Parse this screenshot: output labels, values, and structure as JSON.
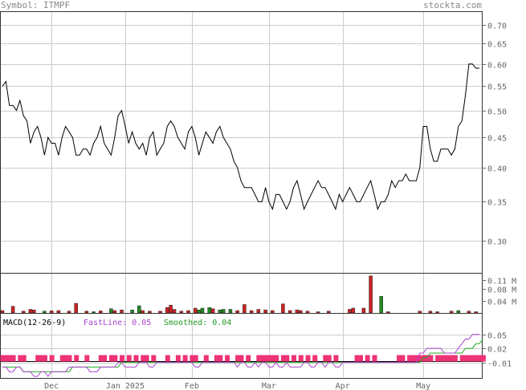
{
  "header": {
    "symbol_label": "Symbol: ITMPF",
    "brand": "stockta.com"
  },
  "colors": {
    "price_line": "#000000",
    "grid": "#cccccc",
    "volume_up": "#228822",
    "volume_down": "#cc2222",
    "fast_line": "#aa44cc",
    "smoothed_line": "#22aa22",
    "histogram": "#ee3377"
  },
  "chart_data": [
    {
      "type": "line",
      "panel": "price",
      "y_ticks": [
        "0.70",
        "0.65",
        "0.60",
        "0.55",
        "0.50",
        "0.45",
        "0.40",
        "0.35",
        "0.30"
      ],
      "y_tick_values": [
        0.7,
        0.65,
        0.6,
        0.55,
        0.5,
        0.45,
        0.4,
        0.35,
        0.3
      ],
      "ylim": [
        0.265,
        0.735
      ],
      "log_scale": true,
      "x_labels": [
        "Dec",
        "Jan 2025",
        "Feb",
        "Mar",
        "Apr",
        "May"
      ],
      "x_label_index": [
        14,
        35,
        54,
        76,
        97,
        120
      ],
      "values": [
        0.55,
        0.56,
        0.51,
        0.51,
        0.5,
        0.52,
        0.49,
        0.48,
        0.44,
        0.46,
        0.47,
        0.45,
        0.42,
        0.45,
        0.44,
        0.44,
        0.42,
        0.45,
        0.47,
        0.46,
        0.45,
        0.42,
        0.42,
        0.43,
        0.43,
        0.42,
        0.44,
        0.45,
        0.47,
        0.44,
        0.43,
        0.42,
        0.45,
        0.49,
        0.5,
        0.47,
        0.44,
        0.46,
        0.44,
        0.43,
        0.44,
        0.42,
        0.45,
        0.46,
        0.42,
        0.43,
        0.44,
        0.47,
        0.48,
        0.47,
        0.45,
        0.44,
        0.43,
        0.46,
        0.47,
        0.45,
        0.42,
        0.44,
        0.46,
        0.45,
        0.44,
        0.46,
        0.47,
        0.45,
        0.44,
        0.43,
        0.41,
        0.4,
        0.38,
        0.37,
        0.37,
        0.37,
        0.36,
        0.35,
        0.35,
        0.37,
        0.35,
        0.34,
        0.36,
        0.36,
        0.35,
        0.34,
        0.35,
        0.37,
        0.38,
        0.36,
        0.34,
        0.35,
        0.36,
        0.37,
        0.38,
        0.37,
        0.37,
        0.36,
        0.35,
        0.34,
        0.36,
        0.35,
        0.36,
        0.37,
        0.36,
        0.35,
        0.35,
        0.36,
        0.37,
        0.38,
        0.36,
        0.34,
        0.35,
        0.35,
        0.36,
        0.38,
        0.37,
        0.38,
        0.38,
        0.39,
        0.38,
        0.38,
        0.38,
        0.4,
        0.47,
        0.47,
        0.43,
        0.41,
        0.41,
        0.43,
        0.43,
        0.43,
        0.42,
        0.43,
        0.47,
        0.48,
        0.53,
        0.6,
        0.6,
        0.59,
        0.59
      ]
    },
    {
      "type": "bar",
      "panel": "volume",
      "y_ticks": [
        "0.11 M",
        "0.08 M",
        "0.04 M"
      ],
      "y_tick_values": [
        0.11,
        0.08,
        0.04
      ],
      "ylim": [
        0,
        0.125
      ],
      "bars": [
        {
          "i": 0,
          "v": 0.008,
          "c": "down"
        },
        {
          "i": 3,
          "v": 0.022,
          "c": "down"
        },
        {
          "i": 6,
          "v": 0.006,
          "c": "down"
        },
        {
          "i": 8,
          "v": 0.012,
          "c": "down"
        },
        {
          "i": 9,
          "v": 0.01,
          "c": "down"
        },
        {
          "i": 12,
          "v": 0.006,
          "c": "up"
        },
        {
          "i": 14,
          "v": 0.007,
          "c": "down"
        },
        {
          "i": 16,
          "v": 0.008,
          "c": "down"
        },
        {
          "i": 19,
          "v": 0.006,
          "c": "down"
        },
        {
          "i": 21,
          "v": 0.032,
          "c": "down"
        },
        {
          "i": 24,
          "v": 0.006,
          "c": "down"
        },
        {
          "i": 26,
          "v": 0.004,
          "c": "up"
        },
        {
          "i": 28,
          "v": 0.007,
          "c": "down"
        },
        {
          "i": 31,
          "v": 0.014,
          "c": "up"
        },
        {
          "i": 32,
          "v": 0.008,
          "c": "down"
        },
        {
          "i": 34,
          "v": 0.01,
          "c": "down"
        },
        {
          "i": 37,
          "v": 0.01,
          "c": "up"
        },
        {
          "i": 39,
          "v": 0.024,
          "c": "up"
        },
        {
          "i": 40,
          "v": 0.008,
          "c": "down"
        },
        {
          "i": 42,
          "v": 0.006,
          "c": "down"
        },
        {
          "i": 45,
          "v": 0.006,
          "c": "down"
        },
        {
          "i": 47,
          "v": 0.018,
          "c": "down"
        },
        {
          "i": 48,
          "v": 0.026,
          "c": "down"
        },
        {
          "i": 49,
          "v": 0.012,
          "c": "down"
        },
        {
          "i": 51,
          "v": 0.006,
          "c": "down"
        },
        {
          "i": 53,
          "v": 0.008,
          "c": "down"
        },
        {
          "i": 55,
          "v": 0.016,
          "c": "down"
        },
        {
          "i": 56,
          "v": 0.01,
          "c": "up"
        },
        {
          "i": 57,
          "v": 0.016,
          "c": "up"
        },
        {
          "i": 59,
          "v": 0.018,
          "c": "up"
        },
        {
          "i": 60,
          "v": 0.014,
          "c": "down"
        },
        {
          "i": 62,
          "v": 0.01,
          "c": "up"
        },
        {
          "i": 63,
          "v": 0.012,
          "c": "up"
        },
        {
          "i": 65,
          "v": 0.012,
          "c": "up"
        },
        {
          "i": 67,
          "v": 0.008,
          "c": "down"
        },
        {
          "i": 69,
          "v": 0.028,
          "c": "down"
        },
        {
          "i": 71,
          "v": 0.008,
          "c": "down"
        },
        {
          "i": 73,
          "v": 0.012,
          "c": "down"
        },
        {
          "i": 75,
          "v": 0.01,
          "c": "down"
        },
        {
          "i": 77,
          "v": 0.008,
          "c": "down"
        },
        {
          "i": 80,
          "v": 0.03,
          "c": "down"
        },
        {
          "i": 82,
          "v": 0.008,
          "c": "down"
        },
        {
          "i": 84,
          "v": 0.01,
          "c": "down"
        },
        {
          "i": 85,
          "v": 0.008,
          "c": "down"
        },
        {
          "i": 87,
          "v": 0.006,
          "c": "down"
        },
        {
          "i": 90,
          "v": 0.004,
          "c": "down"
        },
        {
          "i": 93,
          "v": 0.006,
          "c": "down"
        },
        {
          "i": 99,
          "v": 0.012,
          "c": "down"
        },
        {
          "i": 100,
          "v": 0.016,
          "c": "down"
        },
        {
          "i": 103,
          "v": 0.016,
          "c": "down"
        },
        {
          "i": 105,
          "v": 0.123,
          "c": "down"
        },
        {
          "i": 108,
          "v": 0.055,
          "c": "up"
        },
        {
          "i": 110,
          "v": 0.004,
          "c": "down"
        },
        {
          "i": 119,
          "v": 0.006,
          "c": "down"
        },
        {
          "i": 122,
          "v": 0.006,
          "c": "down"
        },
        {
          "i": 124,
          "v": 0.004,
          "c": "down"
        },
        {
          "i": 128,
          "v": 0.006,
          "c": "down"
        },
        {
          "i": 130,
          "v": 0.008,
          "c": "up"
        },
        {
          "i": 133,
          "v": 0.006,
          "c": "down"
        },
        {
          "i": 135,
          "v": 0.004,
          "c": "down"
        }
      ]
    },
    {
      "type": "line",
      "panel": "macd",
      "y_ticks": [
        "0.05",
        "0.02",
        "-0.01"
      ],
      "y_tick_values": [
        0.05,
        0.02,
        -0.01
      ],
      "ylim": [
        -0.04,
        0.065
      ],
      "fast_line": [
        -0.02,
        -0.02,
        -0.03,
        -0.03,
        -0.02,
        -0.02,
        -0.03,
        -0.03,
        -0.03,
        -0.04,
        -0.04,
        -0.03,
        -0.03,
        -0.04,
        -0.03,
        -0.03,
        -0.03,
        -0.03,
        -0.03,
        -0.02,
        -0.02,
        -0.02,
        -0.02,
        -0.02,
        -0.02,
        -0.03,
        -0.03,
        -0.03,
        -0.02,
        -0.02,
        -0.02,
        -0.02,
        -0.02,
        -0.01,
        -0.01,
        -0.02,
        -0.02,
        -0.02,
        -0.02,
        -0.01,
        -0.01,
        -0.01,
        -0.02,
        -0.02,
        -0.01,
        -0.01,
        -0.01,
        -0.01,
        -0.01,
        -0.01,
        -0.01,
        -0.01,
        -0.01,
        -0.01,
        -0.01,
        -0.02,
        -0.02,
        -0.01,
        -0.01,
        -0.01,
        -0.01,
        -0.01,
        -0.01,
        -0.01,
        -0.01,
        -0.01,
        -0.01,
        -0.02,
        -0.01,
        -0.01,
        -0.02,
        -0.02,
        -0.01,
        -0.02,
        -0.01,
        -0.01,
        -0.02,
        -0.02,
        -0.01,
        -0.02,
        -0.02,
        -0.01,
        -0.02,
        -0.02,
        -0.02,
        -0.02,
        -0.01,
        -0.01,
        -0.02,
        -0.02,
        -0.01,
        -0.01,
        -0.02,
        -0.01,
        -0.01,
        -0.02,
        -0.02,
        -0.01,
        -0.01,
        -0.01,
        -0.01,
        -0.01,
        -0.01,
        -0.01,
        -0.01,
        -0.01,
        -0.01,
        -0.01,
        -0.01,
        -0.01,
        -0.01,
        -0.01,
        -0.01,
        -0.01,
        -0.01,
        -0.01,
        -0.01,
        -0.01,
        -0.01,
        0.01,
        0.01,
        0.02,
        0.02,
        0.02,
        0.02,
        0.02,
        0.01,
        0.01,
        0.01,
        0.01,
        0.02,
        0.03,
        0.04,
        0.04,
        0.05,
        0.05,
        0.05
      ],
      "smoothed_line": [
        -0.02,
        -0.02,
        -0.02,
        -0.02,
        -0.02,
        -0.02,
        -0.03,
        -0.03,
        -0.03,
        -0.03,
        -0.03,
        -0.03,
        -0.03,
        -0.03,
        -0.03,
        -0.03,
        -0.03,
        -0.03,
        -0.03,
        -0.03,
        -0.02,
        -0.02,
        -0.02,
        -0.02,
        -0.02,
        -0.02,
        -0.02,
        -0.02,
        -0.02,
        -0.02,
        -0.02,
        -0.02,
        -0.02,
        -0.02,
        -0.01,
        -0.01,
        -0.01,
        -0.01,
        -0.01,
        -0.01,
        -0.01,
        -0.01,
        -0.01,
        -0.01,
        -0.01,
        -0.01,
        -0.01,
        -0.01,
        -0.01,
        -0.01,
        -0.01,
        -0.01,
        -0.01,
        -0.01,
        -0.01,
        -0.01,
        -0.01,
        -0.01,
        -0.01,
        -0.01,
        -0.01,
        -0.01,
        -0.01,
        -0.01,
        -0.01,
        -0.01,
        -0.01,
        -0.01,
        -0.01,
        -0.01,
        -0.01,
        -0.01,
        -0.01,
        -0.01,
        -0.01,
        -0.01,
        -0.01,
        -0.01,
        -0.01,
        -0.01,
        -0.01,
        -0.01,
        -0.01,
        -0.01,
        -0.01,
        -0.01,
        -0.01,
        -0.01,
        -0.01,
        -0.01,
        -0.01,
        -0.01,
        -0.01,
        -0.01,
        -0.01,
        -0.01,
        -0.01,
        -0.01,
        -0.01,
        -0.01,
        -0.01,
        -0.01,
        -0.01,
        -0.01,
        -0.01,
        -0.01,
        -0.01,
        -0.01,
        -0.01,
        -0.01,
        -0.01,
        -0.01,
        -0.01,
        -0.01,
        -0.01,
        -0.01,
        -0.01,
        -0.01,
        -0.01,
        -0.01,
        0.0,
        0.0,
        0.01,
        0.01,
        0.01,
        0.01,
        0.01,
        0.01,
        0.01,
        0.01,
        0.01,
        0.01,
        0.02,
        0.02,
        0.02,
        0.03,
        0.03,
        0.04
      ],
      "histogram_marks": [
        0,
        1,
        2,
        3,
        5,
        6,
        10,
        11,
        12,
        14,
        17,
        18,
        19,
        21,
        24,
        28,
        29,
        31,
        32,
        34,
        36,
        38,
        40,
        41,
        43,
        47,
        50,
        52,
        54,
        55,
        58,
        61,
        62,
        64,
        67,
        68,
        70,
        73,
        74,
        75,
        76,
        77,
        78,
        80,
        81,
        83,
        85,
        87,
        89,
        92,
        93,
        95,
        101,
        102,
        104,
        106,
        113,
        114,
        116,
        117,
        118,
        119,
        120,
        121,
        122,
        124,
        125,
        126,
        127,
        128,
        129,
        131,
        132,
        133,
        134,
        135,
        136,
        137
      ]
    }
  ],
  "macd_panel": {
    "label": "MACD(12-26-9)",
    "fast_label": "FastLine: 0.05",
    "smoothed_label": "Smoothed: 0.04"
  }
}
